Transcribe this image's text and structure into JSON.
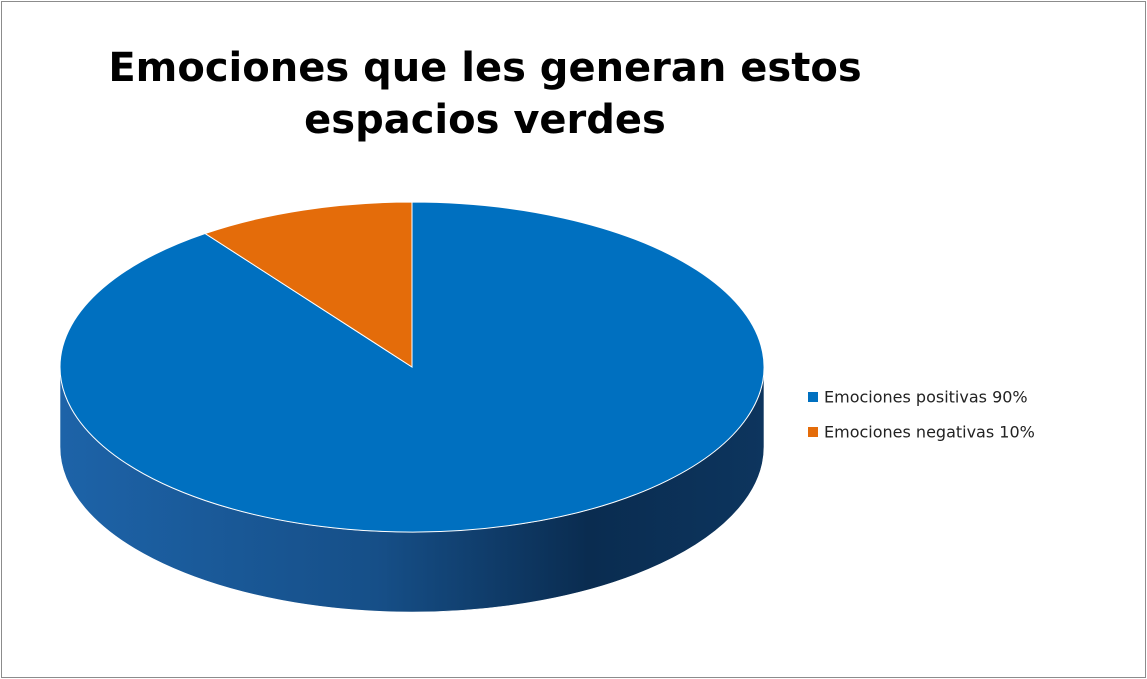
{
  "chart_data": {
    "type": "pie",
    "title": "Emociones que les generan estos espacios verdes",
    "categories": [
      "Emociones positivas 90%",
      "Emociones negativas 10%"
    ],
    "values": [
      90,
      10
    ],
    "colors": [
      "#0070c0",
      "#e46c0a"
    ],
    "legend": "right"
  }
}
